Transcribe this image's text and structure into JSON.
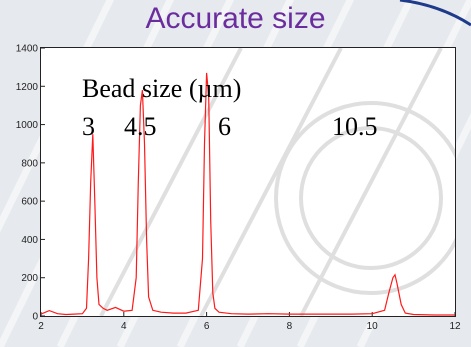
{
  "colors": {
    "title": "#6b2c9e",
    "series": "#ff1a1a",
    "background": "#e6e9ee"
  },
  "chart_data": {
    "type": "line",
    "title": "Accurate size",
    "xlabel": "",
    "ylabel": "",
    "xlim": [
      2,
      12
    ],
    "ylim": [
      0,
      1400
    ],
    "xticks": [
      2,
      4,
      6,
      8,
      10,
      12
    ],
    "yticks": [
      0,
      200,
      400,
      600,
      800,
      1000,
      1200,
      1400
    ],
    "grid": false,
    "annotations": {
      "heading": "Bead size (µm)",
      "bead_sizes": [
        "3",
        "4.5",
        "6",
        "10.5"
      ]
    },
    "series": [
      {
        "x": [
          2.0,
          2.2,
          2.4,
          2.6,
          2.8,
          3.0,
          3.1,
          3.15,
          3.2,
          3.25,
          3.3,
          3.35,
          3.4,
          3.5,
          3.6,
          3.8,
          4.0,
          4.2,
          4.3,
          4.35,
          4.4,
          4.45,
          4.5,
          4.55,
          4.6,
          4.7,
          4.9,
          5.2,
          5.5,
          5.8,
          5.9,
          5.95,
          6.0,
          6.05,
          6.1,
          6.15,
          6.2,
          6.3,
          6.6,
          7.0,
          7.5,
          8.0,
          8.5,
          9.0,
          9.5,
          10.0,
          10.3,
          10.4,
          10.5,
          10.55,
          10.6,
          10.7,
          10.8,
          11.0,
          11.5,
          12.0
        ],
        "y": [
          10,
          28,
          12,
          8,
          10,
          12,
          40,
          300,
          700,
          950,
          600,
          200,
          60,
          40,
          30,
          45,
          25,
          30,
          200,
          700,
          1100,
          1180,
          900,
          400,
          100,
          30,
          20,
          15,
          15,
          30,
          300,
          900,
          1270,
          1150,
          500,
          120,
          40,
          20,
          12,
          10,
          12,
          10,
          10,
          10,
          10,
          12,
          30,
          120,
          200,
          215,
          170,
          60,
          15,
          8,
          5,
          5
        ]
      }
    ]
  }
}
